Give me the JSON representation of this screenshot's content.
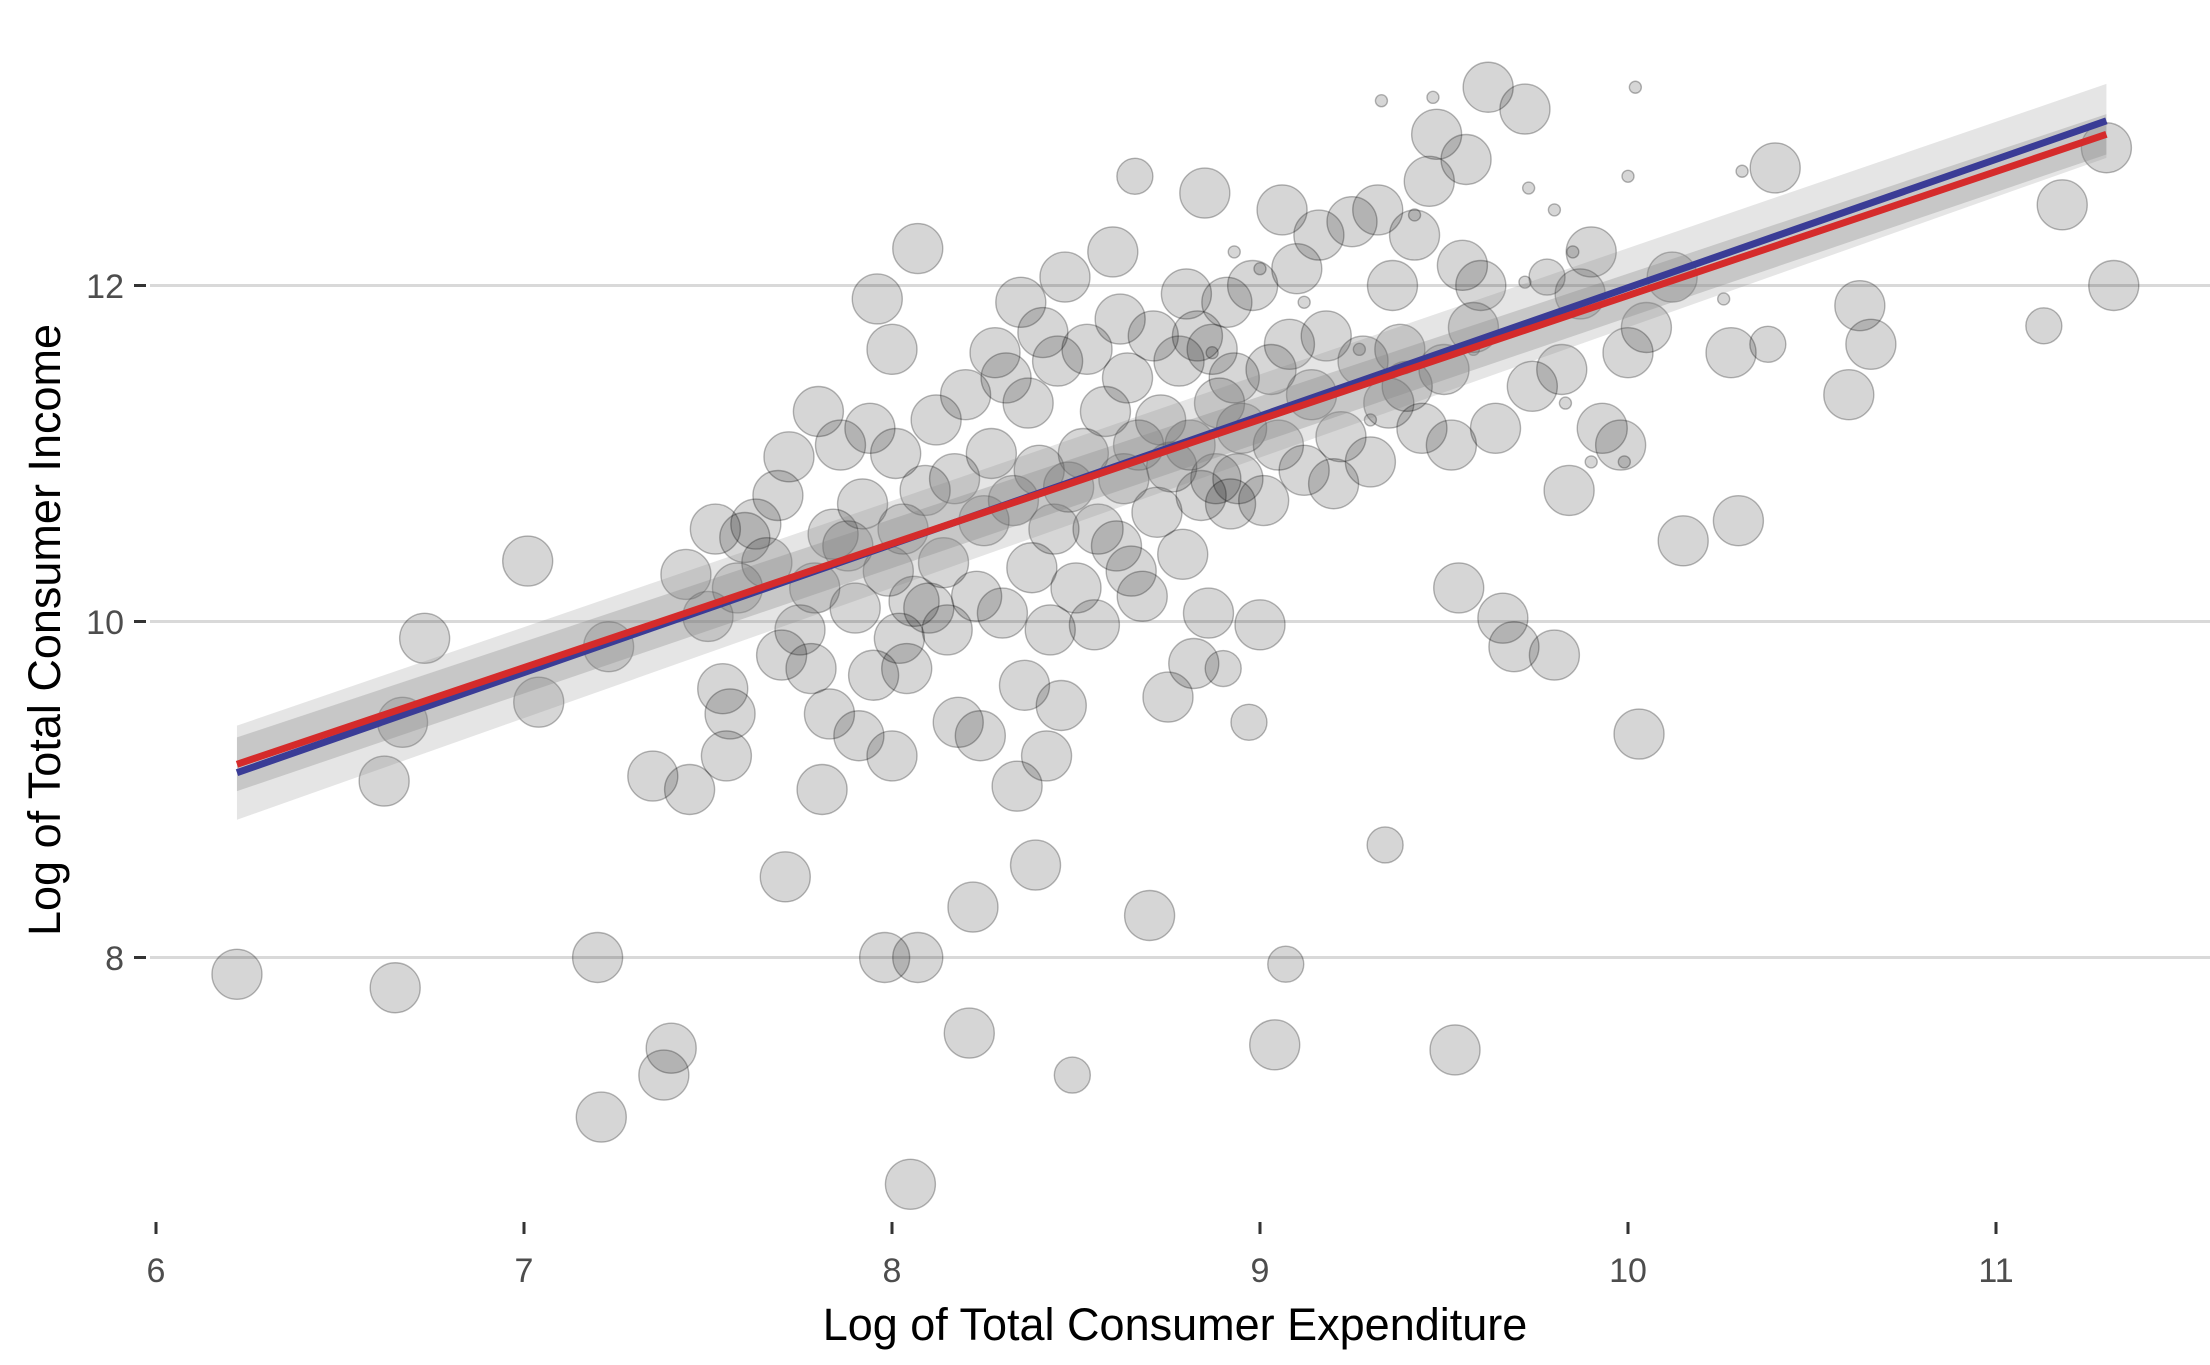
{
  "chart_data": {
    "type": "scatter",
    "title": "",
    "xlabel": "Log of Total Consumer Expenditure",
    "ylabel": "Log of Total Consumer Income",
    "xlim": [
      6,
      11.55
    ],
    "ylim": [
      6.3,
      13.5
    ],
    "x_ticks": [
      "6",
      "7",
      "8",
      "9",
      "10",
      "11"
    ],
    "y_ticks": [
      "8",
      "10",
      "12"
    ],
    "grid": "horizontal major gridlines only",
    "legend": "none",
    "point_color": "#000000",
    "point_opacity": 0.16,
    "confidence_band_color": "#888888",
    "fit_lines": [
      {
        "color": "#3a3c96",
        "x": [
          6.22,
          11.3
        ],
        "y": [
          9.1,
          12.98
        ],
        "band": [
          0.28,
          0.22
        ]
      },
      {
        "color": "#d52b2b",
        "x": [
          6.22,
          11.3
        ],
        "y": [
          9.15,
          12.9
        ],
        "band": [
          0.16,
          0.12
        ]
      }
    ],
    "points": [
      [
        6.22,
        7.9,
        3
      ],
      [
        6.62,
        9.05,
        3
      ],
      [
        6.65,
        7.82,
        3
      ],
      [
        6.67,
        9.4,
        3
      ],
      [
        6.73,
        9.9,
        3
      ],
      [
        7.01,
        10.36,
        3
      ],
      [
        7.04,
        9.52,
        3
      ],
      [
        7.2,
        8.0,
        3
      ],
      [
        7.21,
        7.05,
        3
      ],
      [
        7.23,
        9.85,
        3
      ],
      [
        7.35,
        9.08,
        3
      ],
      [
        7.38,
        7.3,
        3
      ],
      [
        7.4,
        7.46,
        3
      ],
      [
        7.44,
        10.28,
        3
      ],
      [
        7.45,
        9.0,
        3
      ],
      [
        7.5,
        10.03,
        3
      ],
      [
        7.52,
        10.55,
        3
      ],
      [
        7.54,
        9.6,
        3
      ],
      [
        7.55,
        9.2,
        3
      ],
      [
        7.56,
        9.45,
        3
      ],
      [
        7.58,
        10.2,
        3
      ],
      [
        7.6,
        10.5,
        3
      ],
      [
        7.63,
        10.58,
        3
      ],
      [
        7.66,
        10.35,
        3
      ],
      [
        7.69,
        10.75,
        3
      ],
      [
        7.7,
        9.8,
        3
      ],
      [
        7.71,
        8.48,
        3
      ],
      [
        7.72,
        10.98,
        3
      ],
      [
        7.75,
        9.95,
        3
      ],
      [
        7.78,
        9.72,
        3
      ],
      [
        7.79,
        10.2,
        3
      ],
      [
        7.8,
        11.25,
        3
      ],
      [
        7.81,
        9.0,
        3
      ],
      [
        7.83,
        9.45,
        3
      ],
      [
        7.84,
        10.52,
        3
      ],
      [
        7.86,
        11.05,
        3
      ],
      [
        7.88,
        10.45,
        3
      ],
      [
        7.9,
        10.08,
        3
      ],
      [
        7.91,
        9.32,
        3
      ],
      [
        7.92,
        10.7,
        3
      ],
      [
        7.94,
        11.15,
        3
      ],
      [
        7.95,
        9.68,
        3
      ],
      [
        7.96,
        11.92,
        3
      ],
      [
        7.98,
        8.0,
        3
      ],
      [
        7.99,
        10.3,
        3
      ],
      [
        8.0,
        9.2,
        3
      ],
      [
        8.0,
        11.62,
        3
      ],
      [
        8.01,
        11.0,
        3
      ],
      [
        8.02,
        9.9,
        3
      ],
      [
        8.03,
        10.55,
        3
      ],
      [
        8.04,
        9.72,
        3
      ],
      [
        8.05,
        6.65,
        3
      ],
      [
        8.06,
        10.12,
        3
      ],
      [
        8.07,
        8.0,
        3
      ],
      [
        8.07,
        12.22,
        3
      ],
      [
        8.09,
        10.78,
        3
      ],
      [
        8.1,
        10.08,
        3
      ],
      [
        8.12,
        11.2,
        3
      ],
      [
        8.14,
        10.35,
        3
      ],
      [
        8.15,
        9.95,
        3
      ],
      [
        8.17,
        10.85,
        3
      ],
      [
        8.18,
        9.4,
        3
      ],
      [
        8.2,
        11.35,
        3
      ],
      [
        8.21,
        7.55,
        3
      ],
      [
        8.22,
        8.3,
        3
      ],
      [
        8.23,
        10.15,
        3
      ],
      [
        8.24,
        9.32,
        3
      ],
      [
        8.25,
        10.6,
        3
      ],
      [
        8.27,
        11.0,
        3
      ],
      [
        8.28,
        11.6,
        3
      ],
      [
        8.3,
        10.05,
        3
      ],
      [
        8.31,
        11.45,
        3
      ],
      [
        8.33,
        10.72,
        3
      ],
      [
        8.34,
        9.02,
        3
      ],
      [
        8.35,
        11.9,
        3
      ],
      [
        8.36,
        9.62,
        3
      ],
      [
        8.37,
        11.3,
        3
      ],
      [
        8.38,
        10.32,
        3
      ],
      [
        8.39,
        8.55,
        3
      ],
      [
        8.4,
        10.9,
        3
      ],
      [
        8.41,
        11.72,
        3
      ],
      [
        8.42,
        9.2,
        3
      ],
      [
        8.43,
        9.95,
        3
      ],
      [
        8.44,
        10.55,
        3
      ],
      [
        8.45,
        11.55,
        3
      ],
      [
        8.46,
        9.5,
        3
      ],
      [
        8.47,
        12.05,
        3
      ],
      [
        8.48,
        10.8,
        3
      ],
      [
        8.49,
        7.3,
        2
      ],
      [
        8.5,
        10.2,
        3
      ],
      [
        8.52,
        11.0,
        3
      ],
      [
        8.53,
        11.62,
        3
      ],
      [
        8.55,
        9.98,
        3
      ],
      [
        8.56,
        10.55,
        3
      ],
      [
        8.58,
        11.25,
        3
      ],
      [
        8.6,
        12.2,
        3
      ],
      [
        8.61,
        10.45,
        3
      ],
      [
        8.62,
        11.8,
        3
      ],
      [
        8.63,
        10.85,
        3
      ],
      [
        8.64,
        11.45,
        3
      ],
      [
        8.65,
        10.3,
        3
      ],
      [
        8.66,
        12.65,
        2
      ],
      [
        8.67,
        11.05,
        3
      ],
      [
        8.68,
        10.15,
        3
      ],
      [
        8.7,
        8.25,
        3
      ],
      [
        8.71,
        11.7,
        3
      ],
      [
        8.72,
        10.65,
        3
      ],
      [
        8.73,
        11.2,
        3
      ],
      [
        8.75,
        9.55,
        3
      ],
      [
        8.76,
        10.92,
        3
      ],
      [
        8.78,
        11.55,
        3
      ],
      [
        8.79,
        10.4,
        3
      ],
      [
        8.8,
        11.95,
        3
      ],
      [
        8.81,
        11.05,
        3
      ],
      [
        8.82,
        9.75,
        3
      ],
      [
        8.83,
        11.7,
        3
      ],
      [
        8.84,
        10.75,
        3
      ],
      [
        8.85,
        12.55,
        3
      ],
      [
        8.86,
        10.05,
        3
      ],
      [
        8.87,
        11.62,
        3
      ],
      [
        8.88,
        10.85,
        3
      ],
      [
        8.89,
        11.3,
        3
      ],
      [
        8.9,
        9.72,
        2
      ],
      [
        8.91,
        11.9,
        3
      ],
      [
        8.92,
        10.7,
        3
      ],
      [
        8.93,
        11.45,
        3
      ],
      [
        8.94,
        10.85,
        3
      ],
      [
        8.95,
        11.15,
        3
      ],
      [
        8.97,
        9.4,
        2
      ],
      [
        8.98,
        12.0,
        3
      ],
      [
        9.0,
        9.98,
        3
      ],
      [
        9.01,
        10.72,
        3
      ],
      [
        9.03,
        11.5,
        3
      ],
      [
        9.04,
        7.48,
        3
      ],
      [
        9.05,
        11.05,
        3
      ],
      [
        9.06,
        12.45,
        3
      ],
      [
        9.07,
        7.96,
        2
      ],
      [
        9.08,
        11.65,
        3
      ],
      [
        9.1,
        12.1,
        3
      ],
      [
        9.12,
        10.9,
        3
      ],
      [
        9.14,
        11.35,
        3
      ],
      [
        9.16,
        12.3,
        3
      ],
      [
        9.18,
        11.7,
        3
      ],
      [
        9.2,
        10.82,
        3
      ],
      [
        9.22,
        11.1,
        3
      ],
      [
        9.25,
        12.38,
        3
      ],
      [
        9.28,
        11.55,
        3
      ],
      [
        9.3,
        10.95,
        3
      ],
      [
        9.32,
        12.45,
        3
      ],
      [
        9.34,
        8.67,
        2
      ],
      [
        9.35,
        11.3,
        3
      ],
      [
        9.36,
        12.0,
        3
      ],
      [
        9.38,
        11.62,
        3
      ],
      [
        9.4,
        11.4,
        3
      ],
      [
        9.42,
        12.3,
        3
      ],
      [
        9.44,
        11.15,
        3
      ],
      [
        9.46,
        12.62,
        3
      ],
      [
        9.48,
        12.9,
        3
      ],
      [
        9.5,
        11.5,
        3
      ],
      [
        9.52,
        11.05,
        3
      ],
      [
        9.53,
        7.45,
        3
      ],
      [
        9.54,
        10.2,
        3
      ],
      [
        9.55,
        12.12,
        3
      ],
      [
        9.56,
        12.75,
        3
      ],
      [
        9.58,
        11.75,
        3
      ],
      [
        9.6,
        12.0,
        3
      ],
      [
        9.62,
        13.18,
        3
      ],
      [
        9.64,
        11.15,
        3
      ],
      [
        9.66,
        10.02,
        3
      ],
      [
        9.69,
        9.85,
        3
      ],
      [
        9.72,
        13.05,
        3
      ],
      [
        9.74,
        11.4,
        3
      ],
      [
        9.78,
        12.05,
        2
      ],
      [
        9.8,
        9.8,
        3
      ],
      [
        9.82,
        11.5,
        3
      ],
      [
        9.84,
        10.78,
        3
      ],
      [
        9.87,
        11.95,
        3
      ],
      [
        9.9,
        12.2,
        3
      ],
      [
        9.93,
        11.15,
        3
      ],
      [
        9.98,
        11.05,
        3
      ],
      [
        10.0,
        11.6,
        3
      ],
      [
        10.03,
        9.33,
        3
      ],
      [
        10.05,
        11.75,
        3
      ],
      [
        10.12,
        12.05,
        3
      ],
      [
        10.15,
        10.48,
        3
      ],
      [
        10.28,
        11.6,
        3
      ],
      [
        10.3,
        10.6,
        3
      ],
      [
        10.31,
        12.68,
        1
      ],
      [
        10.38,
        11.65,
        2
      ],
      [
        10.4,
        12.7,
        3
      ],
      [
        10.6,
        11.35,
        3
      ],
      [
        10.63,
        11.88,
        3
      ],
      [
        10.66,
        11.65,
        3
      ],
      [
        11.13,
        11.76,
        2
      ],
      [
        11.18,
        12.48,
        3
      ],
      [
        11.3,
        12.82,
        3
      ],
      [
        11.32,
        12.0,
        3
      ],
      [
        9.33,
        13.1,
        1
      ],
      [
        9.47,
        13.12,
        1
      ],
      [
        10.02,
        13.18,
        1
      ],
      [
        10.0,
        12.65,
        1
      ],
      [
        9.73,
        12.58,
        1
      ],
      [
        9.42,
        12.42,
        1
      ],
      [
        9.27,
        11.62,
        1
      ],
      [
        9.85,
        12.2,
        1
      ],
      [
        9.83,
        11.3,
        1
      ],
      [
        9.99,
        10.95,
        1
      ],
      [
        10.26,
        11.92,
        1
      ],
      [
        9.9,
        10.95,
        1
      ],
      [
        9.8,
        12.45,
        1
      ],
      [
        9.72,
        12.02,
        1
      ],
      [
        9.58,
        11.62,
        1
      ],
      [
        8.93,
        12.2,
        1
      ],
      [
        8.87,
        11.6,
        1
      ],
      [
        9.0,
        12.1,
        1
      ],
      [
        9.12,
        11.9,
        1
      ],
      [
        9.3,
        11.2,
        1
      ]
    ]
  }
}
